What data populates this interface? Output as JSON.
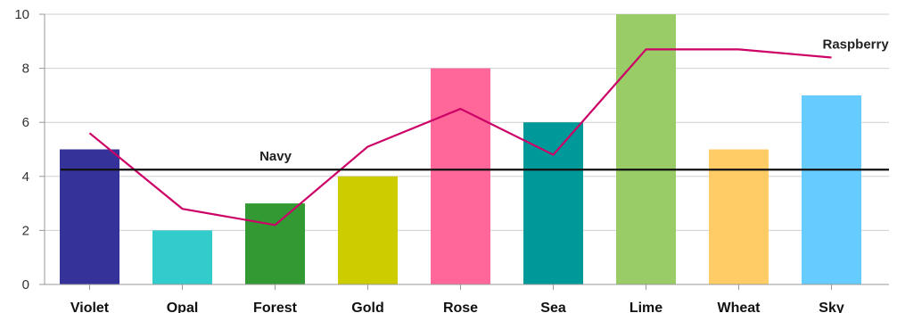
{
  "chart_data": {
    "type": "bar",
    "categories": [
      "Violet",
      "Opal",
      "Forest",
      "Gold",
      "Rose",
      "Sea",
      "Lime",
      "Wheat",
      "Sky"
    ],
    "values": [
      5,
      2,
      3,
      4,
      8,
      6,
      10,
      5,
      7
    ],
    "bar_colors": [
      "#35339a",
      "#33cccc",
      "#339933",
      "#cccc00",
      "#ff6699",
      "#009999",
      "#99cc66",
      "#ffcc66",
      "#66ccff"
    ],
    "ylim": [
      0,
      10
    ],
    "yticks": [
      0,
      2,
      4,
      6,
      8,
      10
    ],
    "grid": true,
    "series": [
      {
        "name": "Raspberry",
        "type": "line",
        "color": "#cc0066",
        "values": [
          5.6,
          2.8,
          2.2,
          5.1,
          6.5,
          4.8,
          8.7,
          8.7,
          8.4
        ]
      },
      {
        "name": "Navy",
        "type": "reference-line",
        "color": "#111111",
        "value": 4.25
      }
    ]
  }
}
